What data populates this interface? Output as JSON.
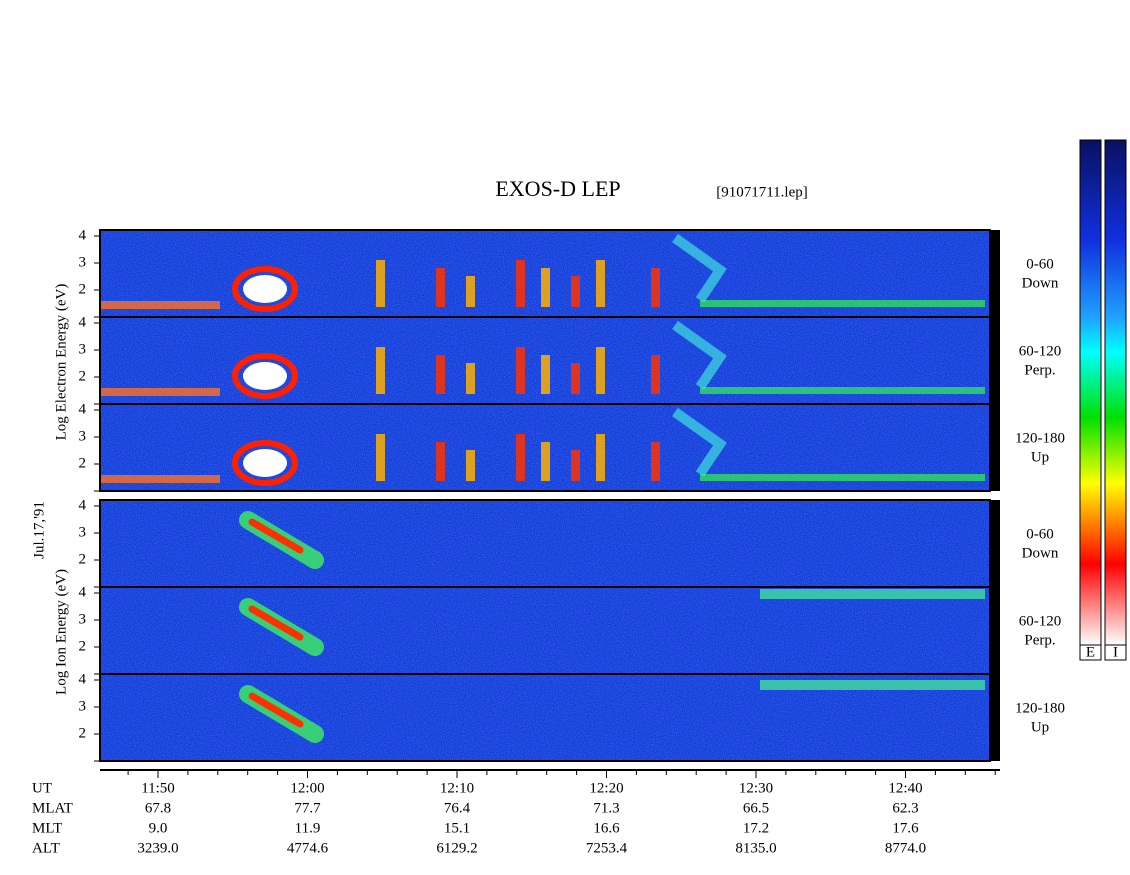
{
  "header": {
    "title": "EXOS-D LEP",
    "file": "[91071711.lep]"
  },
  "date": "Jul.17,'91",
  "electron": {
    "axis_label": "Log Electron Energy (eV)",
    "panels": [
      {
        "pitch": "0-60",
        "dir": "Down"
      },
      {
        "pitch": "60-120",
        "dir": "Perp."
      },
      {
        "pitch": "120-180",
        "dir": "Up"
      }
    ]
  },
  "ion": {
    "axis_label": "Log Ion Energy (eV)",
    "panels": [
      {
        "pitch": "0-60",
        "dir": "Down"
      },
      {
        "pitch": "60-120",
        "dir": "Perp."
      },
      {
        "pitch": "120-180",
        "dir": "Up"
      }
    ]
  },
  "energy_ticks": [
    2,
    3,
    4
  ],
  "time_axis": {
    "rows": [
      {
        "name": "UT",
        "values": [
          "11:50",
          "12:00",
          "12:10",
          "12:20",
          "12:30",
          "12:40"
        ]
      },
      {
        "name": "MLAT",
        "values": [
          "67.8",
          "77.7",
          "76.4",
          "71.3",
          "66.5",
          "62.3"
        ]
      },
      {
        "name": "MLT",
        "values": [
          "9.0",
          "11.9",
          "15.1",
          "16.6",
          "17.2",
          "17.6"
        ]
      },
      {
        "name": "ALT",
        "values": [
          "3239.0",
          "4774.6",
          "6129.2",
          "7253.4",
          "8135.0",
          "8774.0"
        ]
      }
    ]
  },
  "colorbar": {
    "labels": [
      "E",
      "I"
    ]
  }
}
